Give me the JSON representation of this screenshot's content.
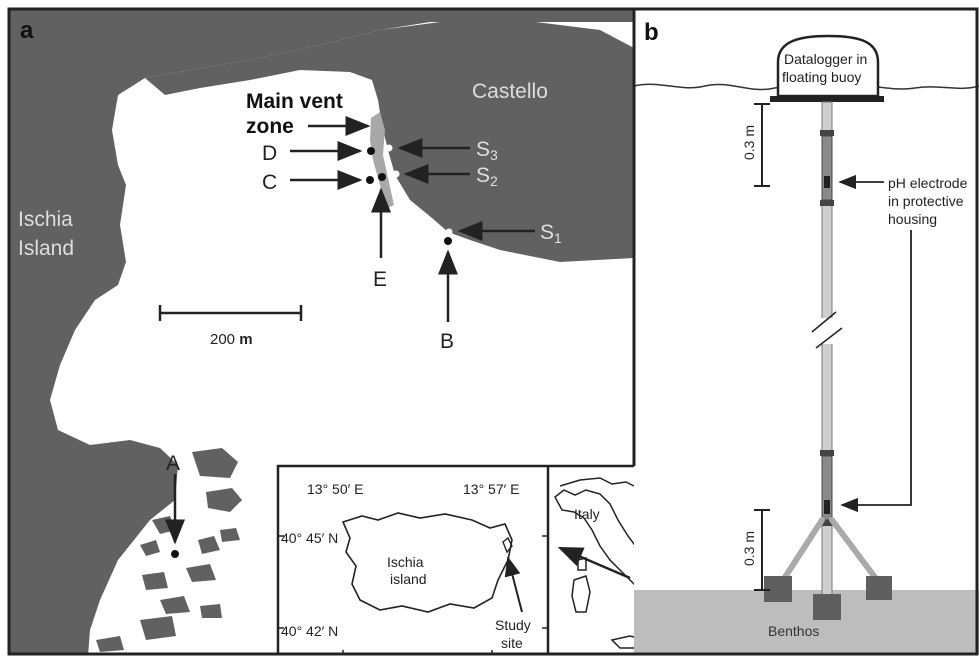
{
  "panel_a": {
    "letter": "a",
    "island_label_line1": "Ischia",
    "island_label_line2": "Island",
    "castello": "Castello",
    "vent_label_line1": "Main vent",
    "vent_label_line2": "zone",
    "stations": {
      "A": "A",
      "B": "B",
      "C": "C",
      "D": "D",
      "E": "E"
    },
    "sites": {
      "s1": "S",
      "s1_sub": "1",
      "s2": "S",
      "s2_sub": "2",
      "s3": "S",
      "s3_sub": "3"
    },
    "scale_bar_value": "200",
    "scale_bar_unit": "m",
    "inset": {
      "lon_left": "13° 50′ E",
      "lon_right": "13° 57′ E",
      "lat_top": "40° 45′ N",
      "lat_bottom": "40° 42′ N",
      "island_line1": "Ischia",
      "island_line2": "island",
      "study_line1": "Study",
      "study_line2": "site",
      "country": "Italy"
    }
  },
  "panel_b": {
    "letter": "b",
    "datalogger_line1": "Datalogger in",
    "datalogger_line2": "floating buoy",
    "depth_top": "0.3 m",
    "depth_bottom": "0.3 m",
    "ph_line1": "pH electrode",
    "ph_line2": "in protective",
    "ph_line3": "housing",
    "benthos": "Benthos"
  },
  "colors": {
    "land": "#616161",
    "vent": "#a8a8a8",
    "seafloor": "#bdbdbd",
    "pole": "#cfcfcf",
    "frame": "#222222"
  }
}
